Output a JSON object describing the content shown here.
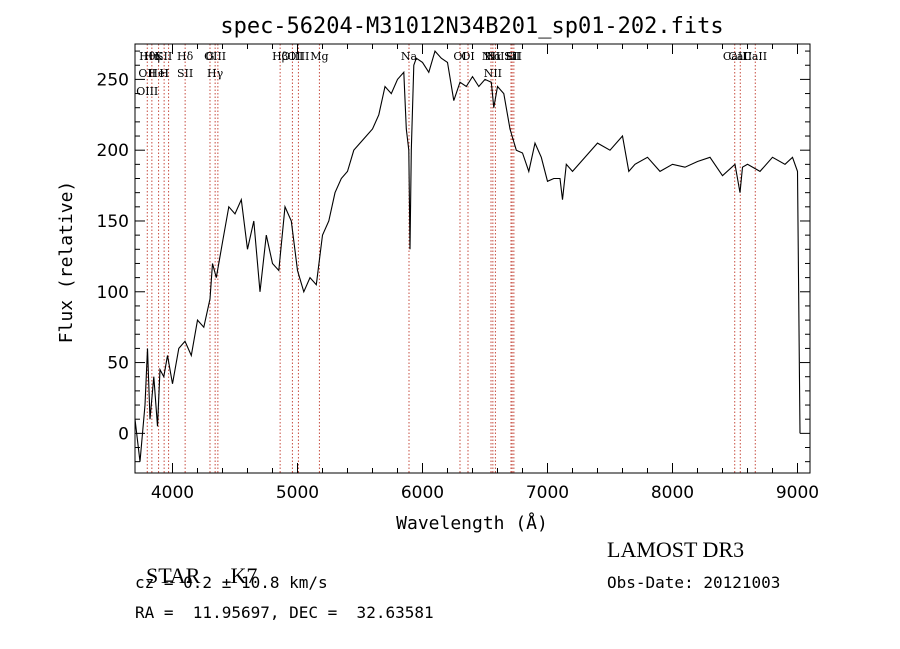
{
  "chart_data": {
    "type": "line",
    "title": "spec-56204-M31012N34B201_sp01-202.fits",
    "xlabel": "Wavelength (Å)",
    "ylabel": "Flux (relative)",
    "xlim": [
      3700,
      9100
    ],
    "ylim": [
      -28,
      275
    ],
    "xticks": [
      4000,
      5000,
      6000,
      7000,
      8000,
      9000
    ],
    "yticks": [
      0,
      50,
      100,
      150,
      200,
      250
    ],
    "grid": false,
    "series": [
      {
        "x": [
          3700,
          3740,
          3780,
          3800,
          3820,
          3850,
          3880,
          3900,
          3930,
          3960,
          4000,
          4050,
          4100,
          4150,
          4200,
          4250,
          4300,
          4320,
          4350,
          4400,
          4450,
          4500,
          4550,
          4600,
          4650,
          4700,
          4750,
          4800,
          4850,
          4900,
          4950,
          5000,
          5050,
          5100,
          5150,
          5200,
          5250,
          5300,
          5350,
          5400,
          5450,
          5500,
          5550,
          5600,
          5650,
          5700,
          5750,
          5800,
          5850,
          5870,
          5890,
          5900,
          5910,
          5930,
          5950,
          6000,
          6050,
          6100,
          6150,
          6200,
          6250,
          6300,
          6350,
          6400,
          6450,
          6500,
          6550,
          6570,
          6600,
          6650,
          6700,
          6750,
          6800,
          6850,
          6900,
          6950,
          7000,
          7050,
          7100,
          7120,
          7150,
          7200,
          7300,
          7400,
          7500,
          7600,
          7650,
          7700,
          7800,
          7900,
          8000,
          8100,
          8200,
          8300,
          8400,
          8500,
          8540,
          8560,
          8600,
          8700,
          8800,
          8900,
          8960,
          9000,
          9020
        ],
        "values": [
          10,
          -20,
          20,
          60,
          10,
          40,
          5,
          45,
          40,
          55,
          35,
          60,
          65,
          55,
          80,
          75,
          95,
          120,
          110,
          135,
          160,
          155,
          165,
          130,
          150,
          100,
          140,
          120,
          115,
          160,
          150,
          115,
          100,
          110,
          105,
          140,
          150,
          170,
          180,
          185,
          200,
          205,
          210,
          215,
          225,
          245,
          240,
          250,
          255,
          215,
          200,
          130,
          200,
          260,
          265,
          262,
          255,
          270,
          265,
          262,
          235,
          248,
          245,
          252,
          245,
          250,
          248,
          230,
          245,
          240,
          215,
          200,
          198,
          185,
          205,
          195,
          178,
          180,
          180,
          165,
          190,
          185,
          195,
          205,
          200,
          210,
          185,
          190,
          195,
          185,
          190,
          188,
          192,
          195,
          182,
          190,
          170,
          188,
          190,
          185,
          195,
          190,
          195,
          185,
          0
        ]
      }
    ],
    "line_labels": [
      {
        "x": 3798,
        "names": [
          "Hθ",
          "OII",
          "OIII"
        ]
      },
      {
        "x": 3835,
        "names": [
          "Hη"
        ]
      },
      {
        "x": 3889,
        "names": [
          "K",
          "HeI"
        ]
      },
      {
        "x": 3933,
        "names": [
          "SII",
          "H"
        ]
      },
      {
        "x": 3969,
        "names": []
      },
      {
        "x": 4101,
        "names": [
          "Hδ",
          "SII"
        ]
      },
      {
        "x": 4300,
        "names": [
          "G"
        ]
      },
      {
        "x": 4341,
        "names": [
          "OIII",
          "Hγ"
        ]
      },
      {
        "x": 4363,
        "names": []
      },
      {
        "x": 4861,
        "names": [
          "Hβ"
        ]
      },
      {
        "x": 4959,
        "names": [
          "OIII"
        ]
      },
      {
        "x": 5007,
        "names": [
          "OIII"
        ]
      },
      {
        "x": 5175,
        "names": [
          "Mg"
        ]
      },
      {
        "x": 5892,
        "names": [
          "Na"
        ]
      },
      {
        "x": 6300,
        "names": [
          "OI"
        ]
      },
      {
        "x": 6364,
        "names": [
          "OI"
        ]
      },
      {
        "x": 6548,
        "names": [
          "NII"
        ]
      },
      {
        "x": 6563,
        "names": [
          "Hα",
          "NII"
        ]
      },
      {
        "x": 6583,
        "names": [
          "NII"
        ]
      },
      {
        "x": 6708,
        "names": [
          "Li"
        ]
      },
      {
        "x": 6717,
        "names": [
          "SII"
        ]
      },
      {
        "x": 6731,
        "names": [
          "SII"
        ]
      },
      {
        "x": 8498,
        "names": [
          "CaII"
        ]
      },
      {
        "x": 8542,
        "names": [
          "CaII"
        ]
      },
      {
        "x": 8662,
        "names": [
          "CaII"
        ]
      }
    ]
  },
  "info": {
    "class": "STAR",
    "subclass": "K7",
    "survey": "LAMOST DR3",
    "cz": "cz = 0.2 ± 10.8 km/s",
    "obs_date": "Obs-Date: 20121003",
    "coords": "RA =  11.95697, DEC =  32.63581"
  }
}
